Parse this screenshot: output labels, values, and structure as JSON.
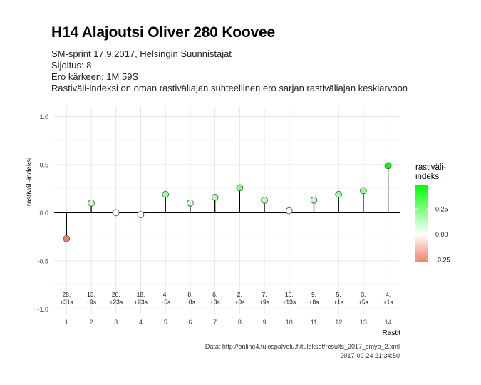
{
  "title": "H14 Alajoutsi Oliver 280 Koovee",
  "subtitles": [
    "SM-sprint 17.9.2017, Helsingin Suunnistajat",
    "Sijoitus: 8",
    "Ero kärkeen: 1M 59S",
    "Rastiväli-indeksi on oman rastiväliajan suhteellinen ero sarjan rastiväliajan keskiarvoon"
  ],
  "caption": {
    "source": "Data: http://online4.tulospalvelu.fi/tulokset/results_2017_smyo_2.xml",
    "timestamp": "2017-09-24 21:34:50"
  },
  "chart_data": {
    "type": "scatter",
    "style": "lollipop",
    "xlabel": "Rastit",
    "ylabel": "rastiväli-indeksi",
    "ylim": [
      -1.05,
      1.1
    ],
    "yticks": [
      -1.0,
      -0.5,
      0.0,
      0.5,
      1.0
    ],
    "ytick_labels": [
      "-1.0",
      "-0.5",
      "0.0",
      "0.5",
      "1.0"
    ],
    "x": [
      1,
      2,
      3,
      4,
      5,
      6,
      7,
      8,
      9,
      10,
      11,
      12,
      13,
      14
    ],
    "values": [
      -0.27,
      0.1,
      0.0,
      -0.02,
      0.19,
      0.1,
      0.16,
      0.26,
      0.13,
      0.02,
      0.13,
      0.19,
      0.23,
      0.49
    ],
    "annotations": [
      [
        "28.",
        "+31s"
      ],
      [
        "13.",
        "+9s"
      ],
      [
        "26.",
        "+23s"
      ],
      [
        "18.",
        "+23s"
      ],
      [
        "4.",
        "+5s"
      ],
      [
        "8.",
        "+8s"
      ],
      [
        "6.",
        "+3s"
      ],
      [
        "2.",
        "+0s"
      ],
      [
        "7.",
        "+9s"
      ],
      [
        "16.",
        "+13s"
      ],
      [
        "9.",
        "+8s"
      ],
      [
        "5.",
        "+1s"
      ],
      [
        "3.",
        "+5s"
      ],
      [
        "4.",
        "+1s"
      ]
    ],
    "annotation_y": -0.91,
    "grid": true,
    "legend": {
      "title": "rastiväli-\nindeksi",
      "position": "right",
      "ticks": [
        0.25,
        0.0,
        -0.25
      ],
      "tick_labels": [
        "0.25",
        "0.00",
        "-0.25"
      ],
      "range": [
        -0.27,
        0.49
      ]
    },
    "colors": {
      "low": "#f0826d",
      "mid": "#ffffff",
      "high": "#00ff00",
      "stem": "#000000",
      "grid": "#e4e4e4",
      "point_stroke": "#555555"
    }
  }
}
